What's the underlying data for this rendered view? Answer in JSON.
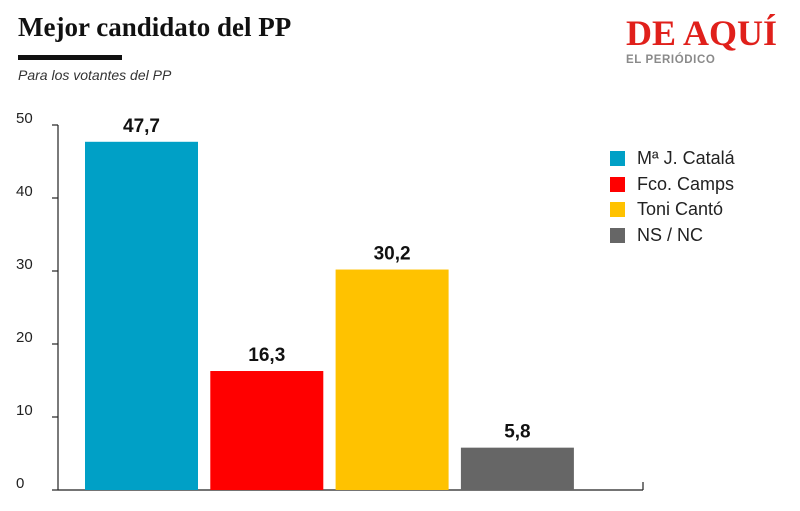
{
  "header": {
    "title": "Mejor candidato del PP",
    "subtitle": "Para los votantes del PP"
  },
  "brand": {
    "name": "DE AQUÍ",
    "sub": "EL PERIÓDICO",
    "color": "#e0201b"
  },
  "chart_data": {
    "type": "bar",
    "title": "Mejor candidato del PP",
    "subtitle": "Para los votantes del PP",
    "categories": [
      "Mª J. Catalá",
      "Fco. Camps",
      "Toni Cantó",
      "NS / NC"
    ],
    "values": [
      47.7,
      16.3,
      30.2,
      5.8
    ],
    "value_labels": [
      "47,7",
      "16,3",
      "30,2",
      "5,8"
    ],
    "colors": [
      "#00a0c6",
      "#ff0000",
      "#ffc200",
      "#666666"
    ],
    "ylim": [
      0,
      50
    ],
    "yticks": [
      0,
      10,
      20,
      30,
      40,
      50
    ],
    "ytick_labels": [
      "0",
      "10",
      "20",
      "30",
      "40",
      "50"
    ],
    "xlabel": "",
    "ylabel": "",
    "grid": false,
    "legend_position": "top-right"
  }
}
